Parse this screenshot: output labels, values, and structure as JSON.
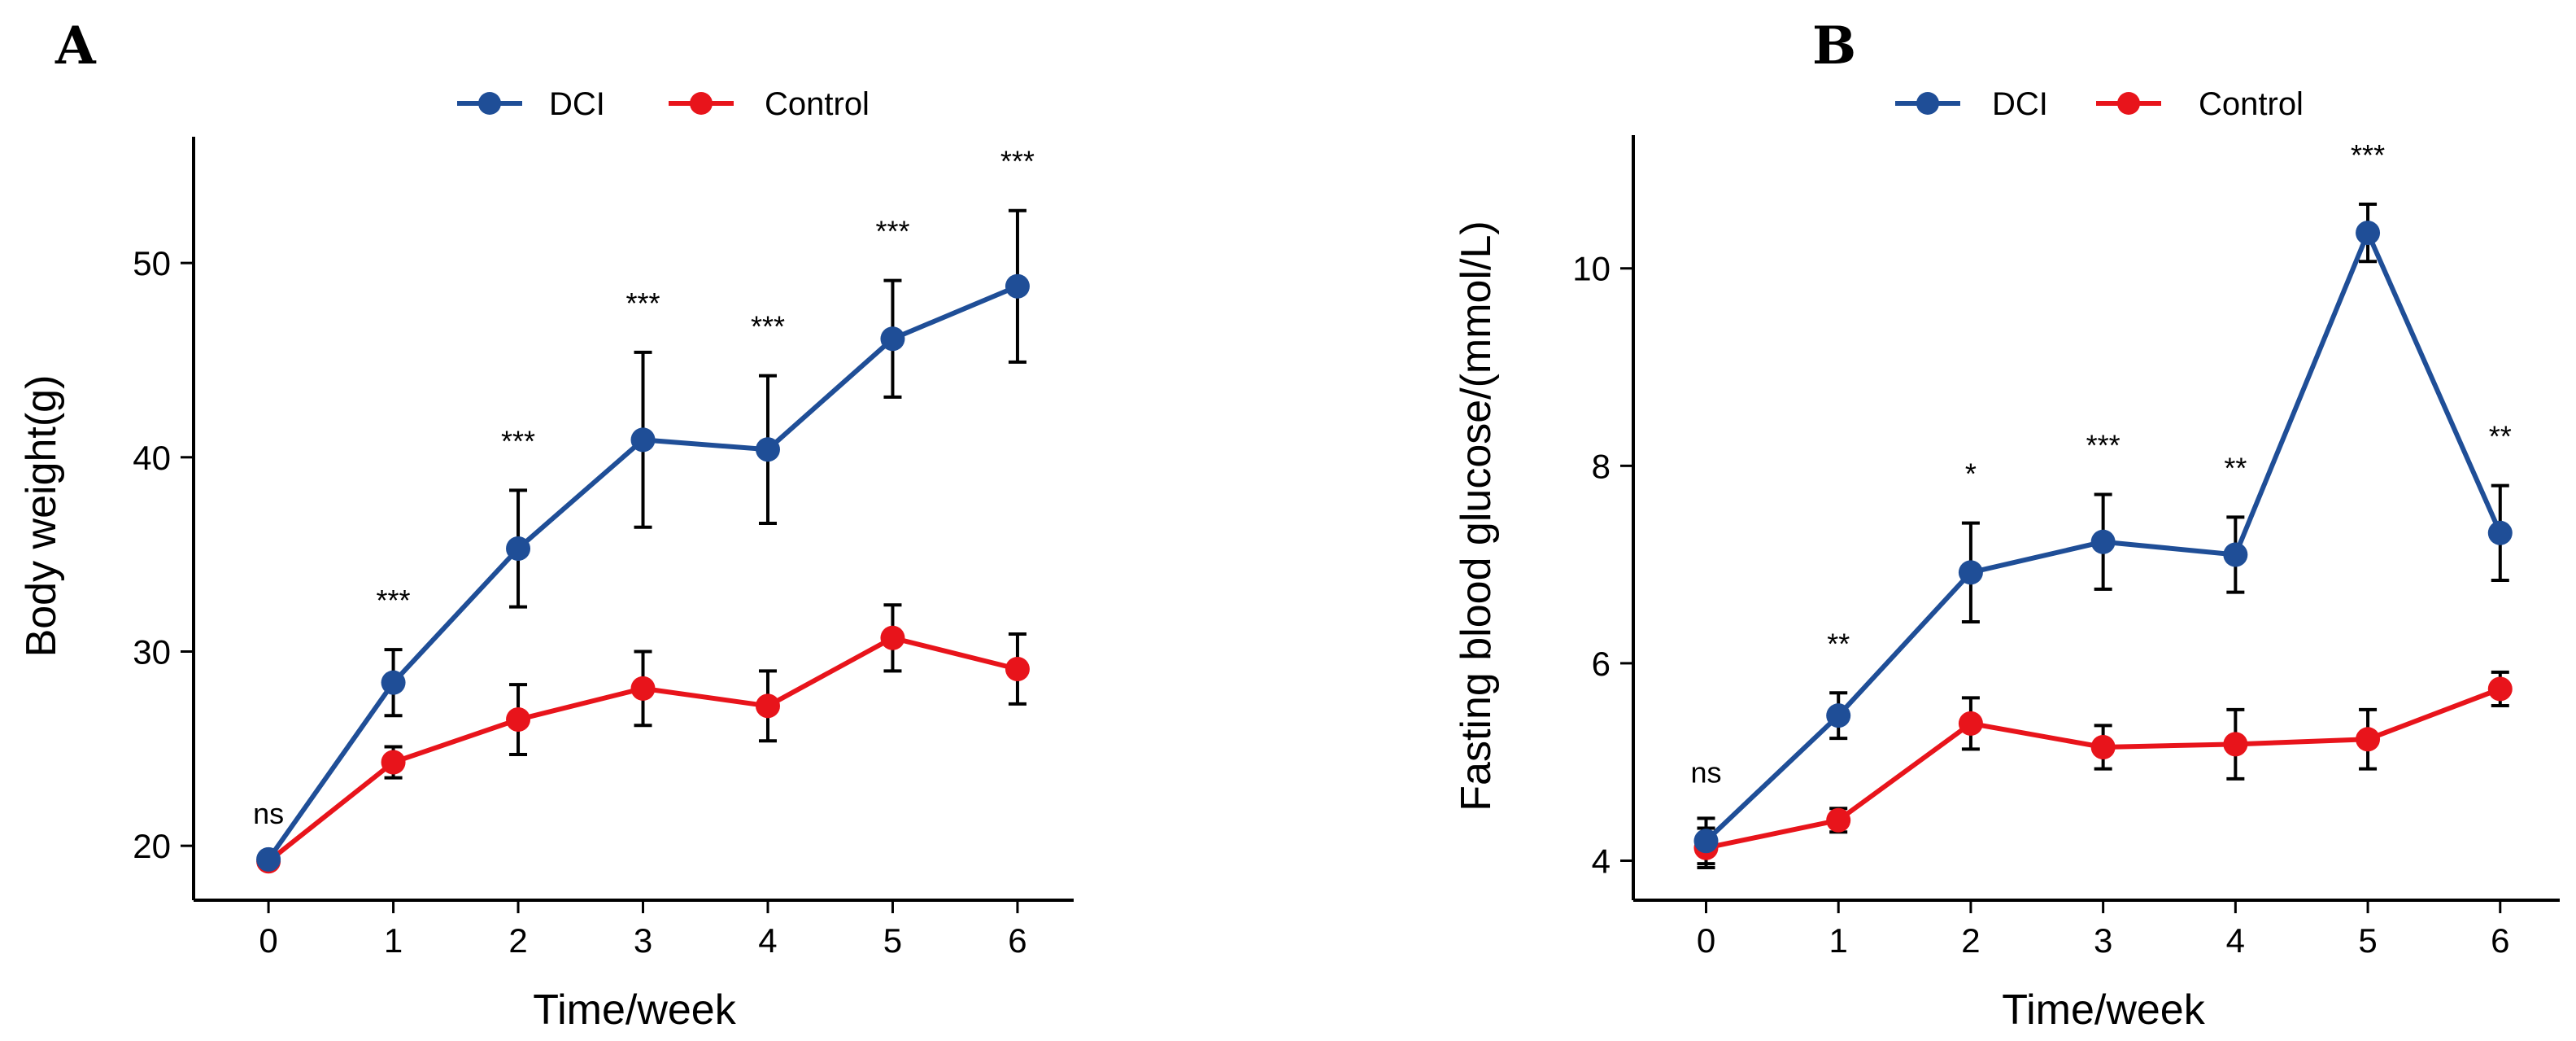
{
  "colors": {
    "dci": "#1f4e97",
    "control": "#e8141b",
    "axis": "#000000",
    "error_bar": "#000000"
  },
  "chart_data": [
    {
      "type": "line",
      "panel_label": "A",
      "xlabel": "Time/week",
      "ylabel": "Body weight(g)",
      "x": [
        0,
        1,
        2,
        3,
        4,
        5,
        6
      ],
      "xlim": [
        -0.6,
        6.45
      ],
      "ylim": [
        17.2,
        56.5
      ],
      "yticks": [
        20,
        30,
        40,
        50
      ],
      "legend": {
        "position": "top-center",
        "entries": [
          "DCI",
          "Control"
        ]
      },
      "grid": false,
      "series": [
        {
          "name": "DCI",
          "color": "#1f4e97",
          "values": [
            19.3,
            28.4,
            35.3,
            40.9,
            40.4,
            46.1,
            48.8
          ],
          "errors": [
            0,
            1.7,
            3.0,
            4.5,
            3.8,
            3.0,
            3.9
          ]
        },
        {
          "name": "Control",
          "color": "#e8141b",
          "values": [
            19.2,
            24.3,
            26.5,
            28.1,
            27.2,
            30.7,
            29.1
          ],
          "errors": [
            0,
            0.8,
            1.8,
            1.9,
            1.8,
            1.7,
            1.8
          ]
        }
      ],
      "significance": [
        "ns",
        "***",
        "***",
        "***",
        "***",
        "***",
        "***"
      ]
    },
    {
      "type": "line",
      "panel_label": "B",
      "xlabel": "Time/week",
      "ylabel": "Fasting blood glucose/(mmol/L)",
      "x": [
        0,
        1,
        2,
        3,
        4,
        5,
        6
      ],
      "xlim": [
        -0.55,
        6.45
      ],
      "ylim": [
        3.6,
        11.35
      ],
      "yticks": [
        4,
        6,
        8,
        10
      ],
      "legend": {
        "position": "top-center",
        "entries": [
          "DCI",
          "Control"
        ]
      },
      "grid": false,
      "series": [
        {
          "name": "DCI",
          "color": "#1f4e97",
          "values": [
            4.2,
            5.47,
            6.92,
            7.23,
            7.1,
            10.36,
            7.32
          ],
          "errors": [
            0.23,
            0.23,
            0.5,
            0.48,
            0.38,
            0.29,
            0.48
          ]
        },
        {
          "name": "Control",
          "color": "#e8141b",
          "values": [
            4.13,
            4.41,
            5.39,
            5.15,
            5.18,
            5.23,
            5.74
          ],
          "errors": [
            0.2,
            0.12,
            0.26,
            0.22,
            0.35,
            0.3,
            0.17
          ]
        }
      ],
      "significance": [
        "ns",
        "**",
        "*",
        "***",
        "**",
        "***",
        "**"
      ]
    }
  ]
}
